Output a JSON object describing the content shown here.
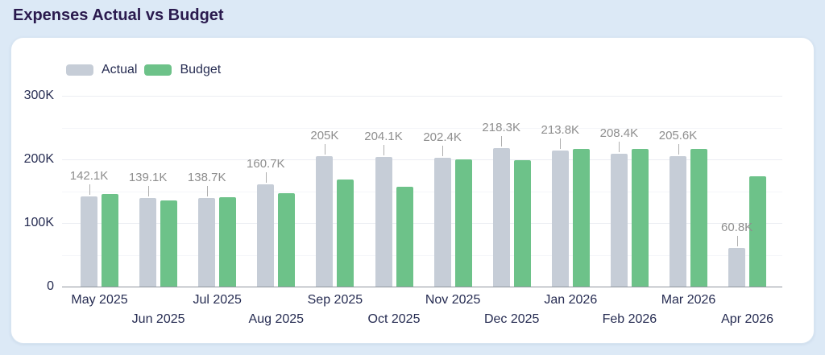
{
  "page": {
    "title": "Expenses Actual vs Budget"
  },
  "colors": {
    "page_background": "#dce9f6",
    "card_background": "#ffffff",
    "title_text": "#2a1a4e",
    "axis_text": "#262c52",
    "value_label_text": "#8e8e8e",
    "actual_bar": "#c6cdd7",
    "budget_bar": "#6dc289",
    "axis_line": "#90969e",
    "gridline_major": "#ebedf2",
    "gridline_minor": "#f5f6f9"
  },
  "chart_data": {
    "type": "bar",
    "title": "Expenses Actual vs Budget",
    "categories": [
      "May 2025",
      "Jun 2025",
      "Jul 2025",
      "Aug 2025",
      "Sep 2025",
      "Oct 2025",
      "Nov 2025",
      "Dec 2025",
      "Jan 2026",
      "Feb 2026",
      "Mar 2026",
      "Apr 2026"
    ],
    "series": [
      {
        "name": "Actual",
        "color": "#c6cdd7",
        "values_k": [
          142.1,
          139.1,
          138.7,
          160.7,
          205,
          204.1,
          202.4,
          218.3,
          213.8,
          208.4,
          205.6,
          60.8
        ],
        "data_labels": [
          "142.1K",
          "139.1K",
          "138.7K",
          "160.7K",
          "205K",
          "204.1K",
          "202.4K",
          "218.3K",
          "213.8K",
          "208.4K",
          "205.6K",
          "60.8K"
        ]
      },
      {
        "name": "Budget",
        "color": "#6dc289",
        "values_k": [
          146,
          136,
          140,
          147,
          168,
          157,
          200,
          199,
          217,
          216,
          217,
          174
        ]
      }
    ],
    "y_axis": {
      "ylim": [
        0,
        300
      ],
      "ticks": [
        {
          "label": "0",
          "value": 0
        },
        {
          "label": "100K",
          "value": 100
        },
        {
          "label": "200K",
          "value": 200
        },
        {
          "label": "300K",
          "value": 300
        }
      ],
      "minor_gridline_step_k": 50
    },
    "legend_position": "top-left",
    "grid": true
  }
}
